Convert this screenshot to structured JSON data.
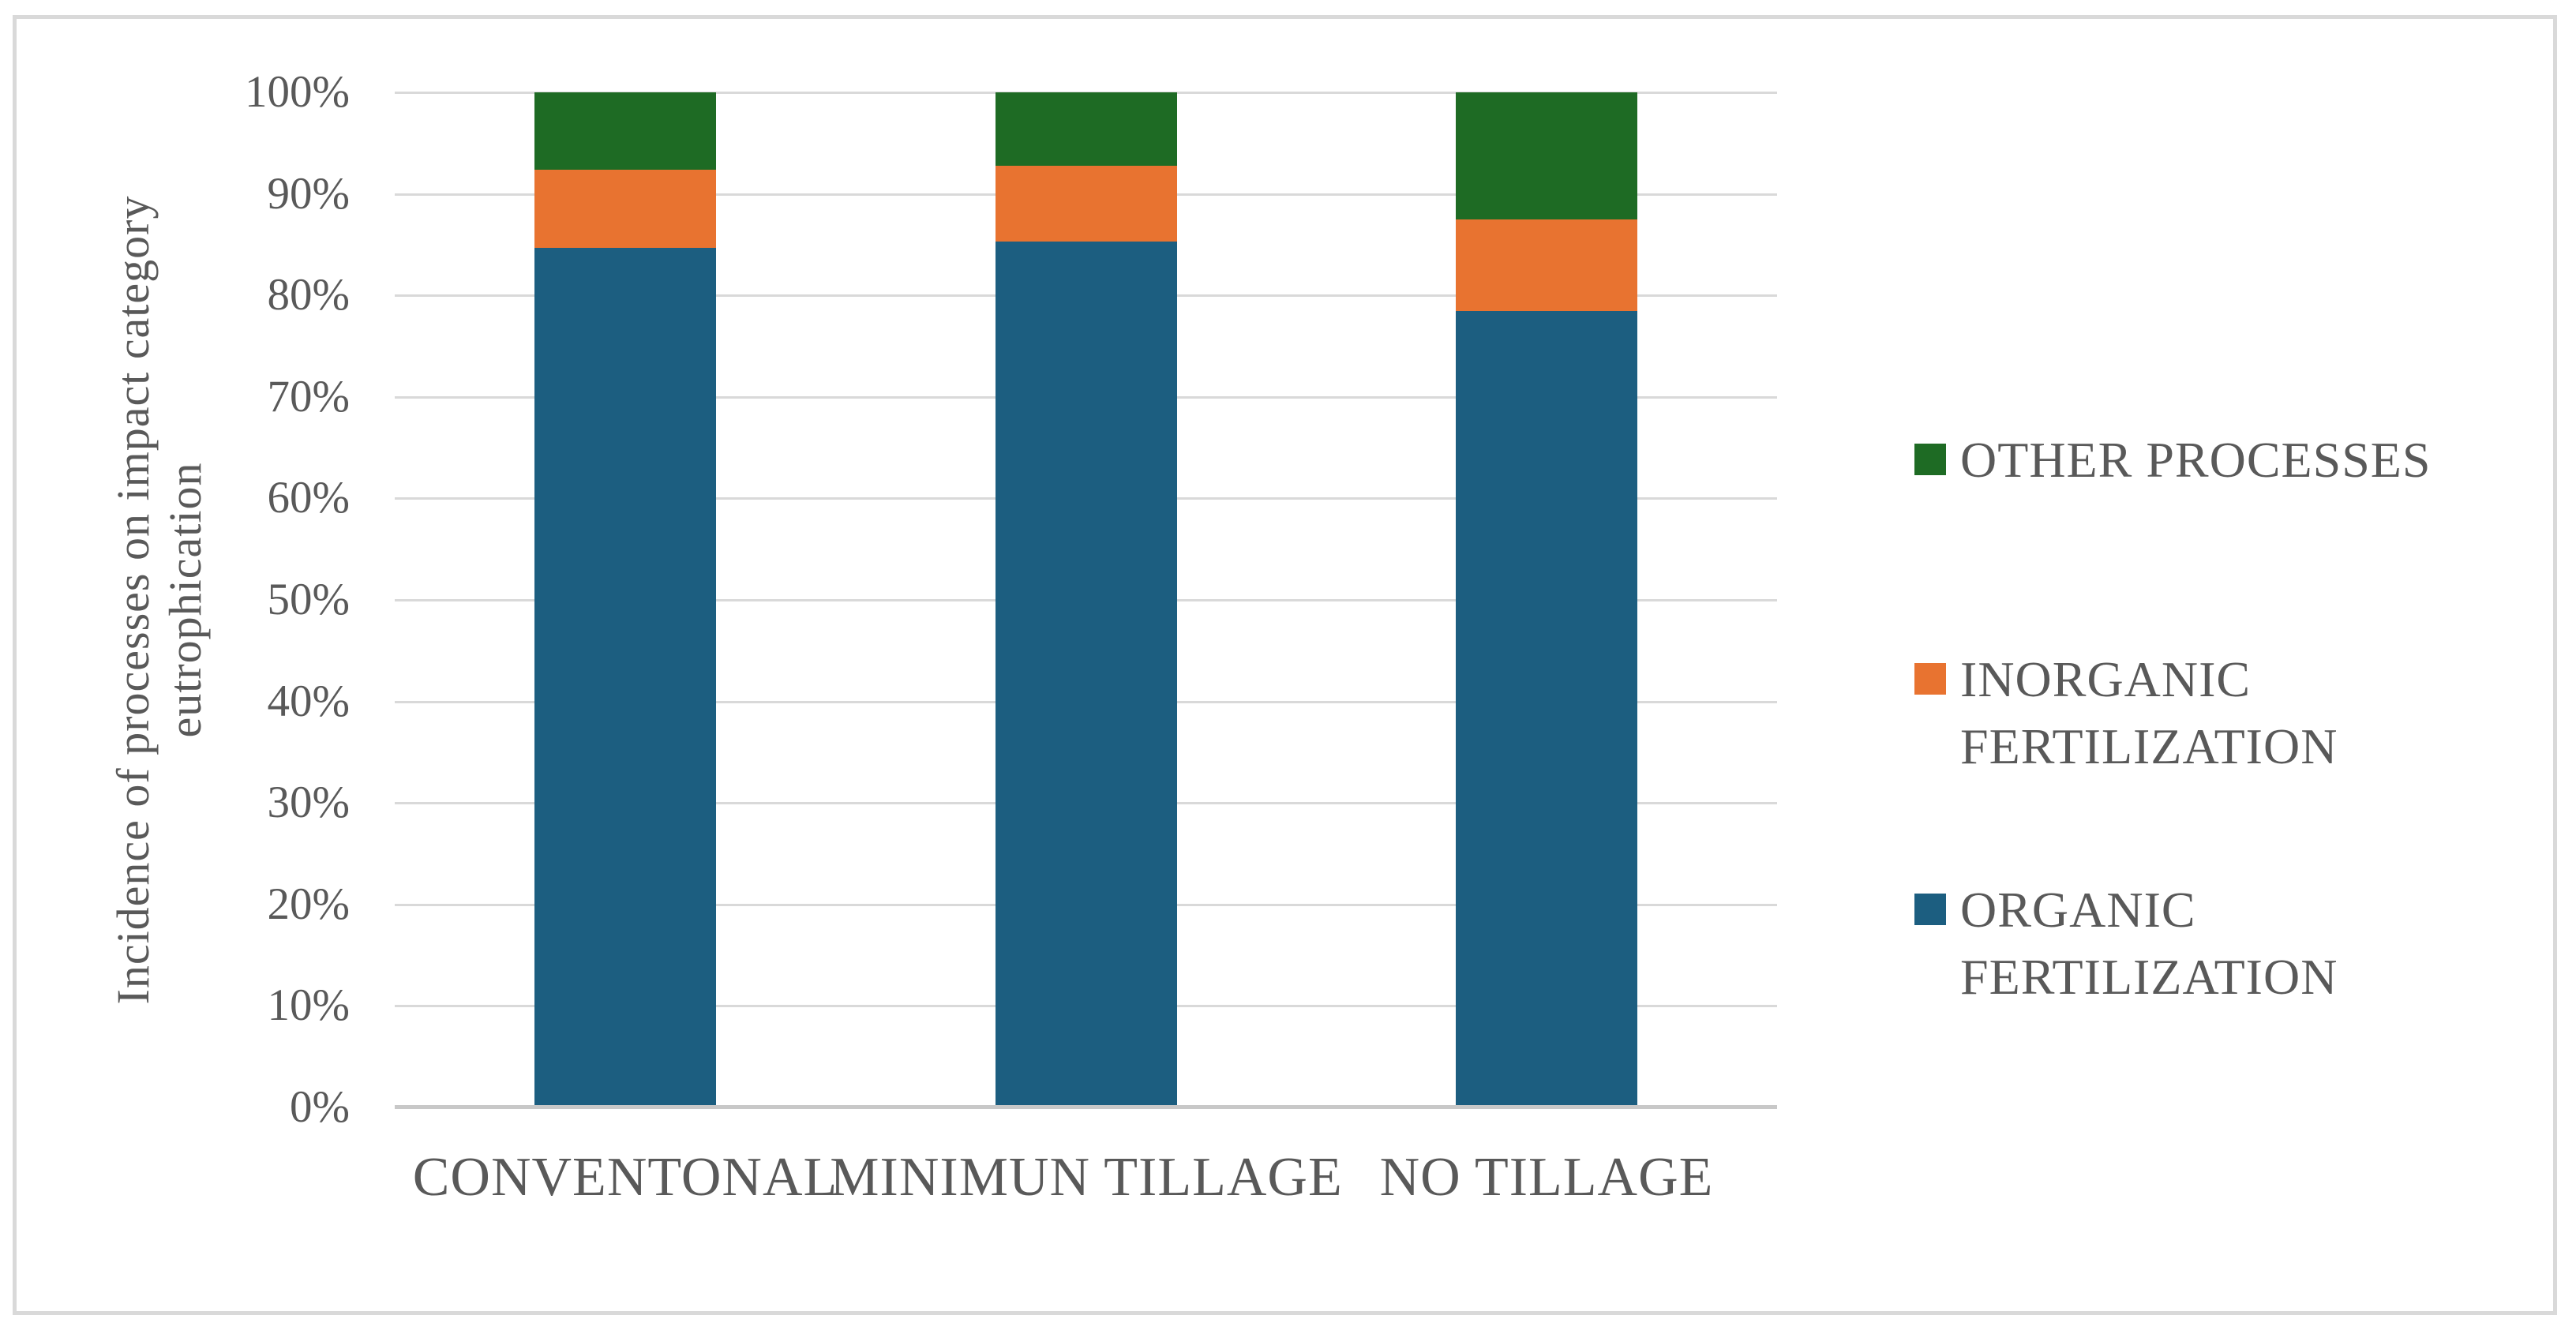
{
  "chart_data": {
    "type": "bar",
    "subtype": "stacked-100-percent-column",
    "title": "",
    "categories": [
      "CONVENTONAL",
      "MINIMUN TILLAGE",
      "NO TILLAGE"
    ],
    "series": [
      {
        "name": "ORGANIC FERTILIZATION",
        "color": "#1c5e80",
        "values": [
          84.7,
          85.3,
          78.5
        ]
      },
      {
        "name": "INORGANIC FERTILIZATION",
        "color": "#e87330",
        "values": [
          7.7,
          7.5,
          9.0
        ]
      },
      {
        "name": "OTHER PROCESSES",
        "color": "#1e6b24",
        "values": [
          7.6,
          7.2,
          12.5
        ]
      }
    ],
    "xlabel": "",
    "ylabel": "Incidence of processes on impact category eutrophication",
    "ylabel_lines": [
      "Incidence of processes on impact category",
      "eutrophication"
    ],
    "y_ticks": [
      "100%",
      "90%",
      "80%",
      "70%",
      "60%",
      "50%",
      "40%",
      "30%",
      "20%",
      "10%",
      "0%"
    ],
    "ylim": [
      0,
      100
    ],
    "grid": true,
    "legend_position": "right"
  },
  "legend": {
    "items": [
      {
        "label": "OTHER PROCESSES",
        "color": "#1e6b24"
      },
      {
        "label": "INORGANIC FERTILIZATION",
        "color": "#e87330"
      },
      {
        "label": "ORGANIC FERTILIZATION",
        "color": "#1c5e80"
      }
    ]
  },
  "style": {
    "text_color": "#595959",
    "gridline_color": "#d9d9d9",
    "axis_line_color": "#c8c8c8",
    "frame_border_color": "#d9d9d9",
    "background": "#ffffff"
  }
}
